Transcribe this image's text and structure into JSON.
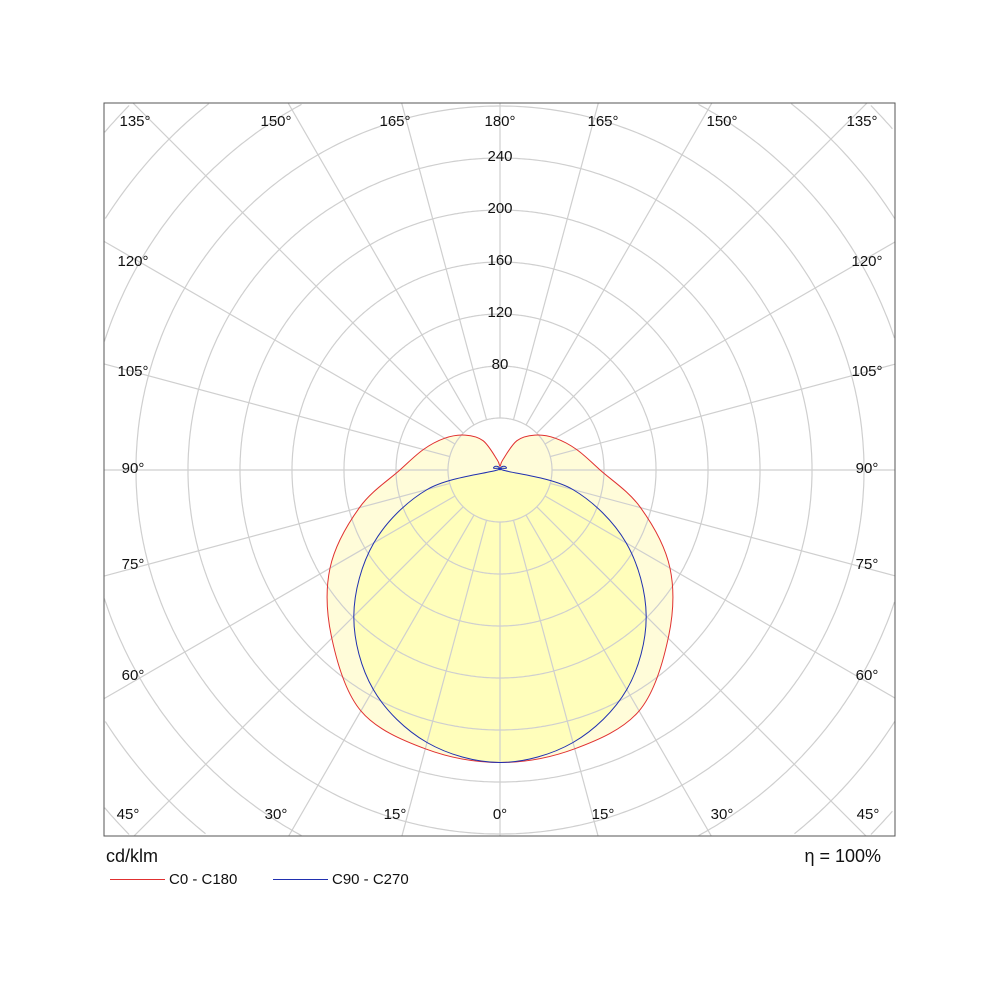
{
  "chart_data": {
    "type": "polar",
    "unit_label": "cd/klm",
    "efficiency_label": "η = 100%",
    "radial_ticks": [
      80,
      120,
      160,
      200,
      240
    ],
    "radial_rings": [
      40,
      80,
      120,
      160,
      200,
      240,
      280,
      320,
      360,
      400
    ],
    "angle_step": 15,
    "angle_labels": {
      "top": [
        "135°",
        "150°",
        "165°",
        "180°",
        "165°",
        "150°",
        "135°"
      ],
      "left": [
        "120°",
        "105°",
        "90°",
        "75°",
        "60°"
      ],
      "right": [
        "120°",
        "105°",
        "90°",
        "75°",
        "60°"
      ],
      "bottom": [
        "45°",
        "30°",
        "15°",
        "0°",
        "15°",
        "30°",
        "45°"
      ]
    },
    "gamma": [
      0,
      15,
      30,
      45,
      60,
      75,
      90,
      105,
      120,
      135,
      150,
      165,
      180
    ],
    "series": [
      {
        "name": "C0 - C180",
        "color": "#e03030",
        "fill": "#fffbd0",
        "values": [
          225,
          222,
          214,
          183,
          151,
          112,
          77,
          61,
          49,
          38,
          26,
          8,
          3
        ]
      },
      {
        "name": "C90 - C270",
        "color": "#2030b0",
        "fill": "#ffffb0",
        "values": [
          225,
          217,
          195,
          159,
          112,
          58,
          2,
          5,
          5,
          4,
          3,
          2,
          0
        ]
      }
    ],
    "grid": true
  }
}
